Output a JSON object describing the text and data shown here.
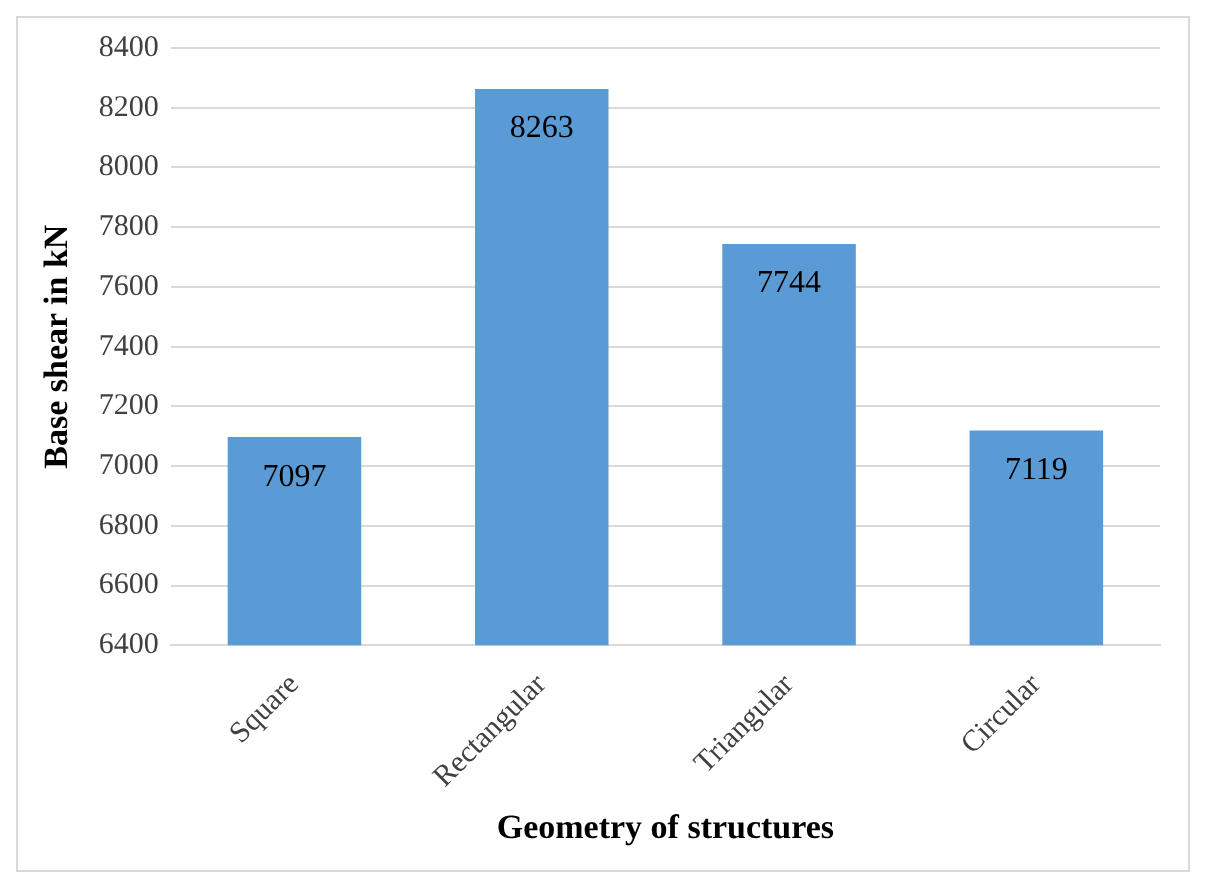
{
  "chart_data": {
    "type": "bar",
    "xlabel": "Geometry of structures",
    "ylabel": "Base shear in kN",
    "categories": [
      "Square",
      "Rectangular",
      "Triangular",
      "Circular"
    ],
    "values": [
      7097,
      8263,
      7744,
      7119
    ],
    "color": "#5b9bd5",
    "ylim": [
      6400,
      8400
    ],
    "yticks": [
      6400,
      6600,
      6800,
      7000,
      7200,
      7400,
      7600,
      7800,
      8000,
      8200,
      8400
    ],
    "grid": "y",
    "data_labels": true,
    "legend": false
  }
}
